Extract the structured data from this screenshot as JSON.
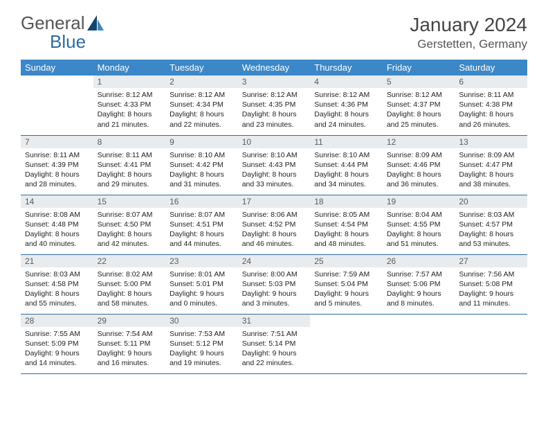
{
  "logo": {
    "word1": "General",
    "word2": "Blue"
  },
  "title": "January 2024",
  "location": "Gerstetten, Germany",
  "colors": {
    "header_bg": "#3c87c7",
    "header_text": "#ffffff",
    "daynum_bg": "#e8ecef",
    "daynum_text": "#5a5a5a",
    "rule": "#2d6ca2",
    "logo_gray": "#555555",
    "logo_blue": "#2d6ca2",
    "sail_dark": "#16456c",
    "sail_mid": "#3c87c7"
  },
  "weekdays": [
    "Sunday",
    "Monday",
    "Tuesday",
    "Wednesday",
    "Thursday",
    "Friday",
    "Saturday"
  ],
  "weeks": [
    [
      null,
      {
        "n": "1",
        "sr": "Sunrise: 8:12 AM",
        "ss": "Sunset: 4:33 PM",
        "d1": "Daylight: 8 hours",
        "d2": "and 21 minutes."
      },
      {
        "n": "2",
        "sr": "Sunrise: 8:12 AM",
        "ss": "Sunset: 4:34 PM",
        "d1": "Daylight: 8 hours",
        "d2": "and 22 minutes."
      },
      {
        "n": "3",
        "sr": "Sunrise: 8:12 AM",
        "ss": "Sunset: 4:35 PM",
        "d1": "Daylight: 8 hours",
        "d2": "and 23 minutes."
      },
      {
        "n": "4",
        "sr": "Sunrise: 8:12 AM",
        "ss": "Sunset: 4:36 PM",
        "d1": "Daylight: 8 hours",
        "d2": "and 24 minutes."
      },
      {
        "n": "5",
        "sr": "Sunrise: 8:12 AM",
        "ss": "Sunset: 4:37 PM",
        "d1": "Daylight: 8 hours",
        "d2": "and 25 minutes."
      },
      {
        "n": "6",
        "sr": "Sunrise: 8:11 AM",
        "ss": "Sunset: 4:38 PM",
        "d1": "Daylight: 8 hours",
        "d2": "and 26 minutes."
      }
    ],
    [
      {
        "n": "7",
        "sr": "Sunrise: 8:11 AM",
        "ss": "Sunset: 4:39 PM",
        "d1": "Daylight: 8 hours",
        "d2": "and 28 minutes."
      },
      {
        "n": "8",
        "sr": "Sunrise: 8:11 AM",
        "ss": "Sunset: 4:41 PM",
        "d1": "Daylight: 8 hours",
        "d2": "and 29 minutes."
      },
      {
        "n": "9",
        "sr": "Sunrise: 8:10 AM",
        "ss": "Sunset: 4:42 PM",
        "d1": "Daylight: 8 hours",
        "d2": "and 31 minutes."
      },
      {
        "n": "10",
        "sr": "Sunrise: 8:10 AM",
        "ss": "Sunset: 4:43 PM",
        "d1": "Daylight: 8 hours",
        "d2": "and 33 minutes."
      },
      {
        "n": "11",
        "sr": "Sunrise: 8:10 AM",
        "ss": "Sunset: 4:44 PM",
        "d1": "Daylight: 8 hours",
        "d2": "and 34 minutes."
      },
      {
        "n": "12",
        "sr": "Sunrise: 8:09 AM",
        "ss": "Sunset: 4:46 PM",
        "d1": "Daylight: 8 hours",
        "d2": "and 36 minutes."
      },
      {
        "n": "13",
        "sr": "Sunrise: 8:09 AM",
        "ss": "Sunset: 4:47 PM",
        "d1": "Daylight: 8 hours",
        "d2": "and 38 minutes."
      }
    ],
    [
      {
        "n": "14",
        "sr": "Sunrise: 8:08 AM",
        "ss": "Sunset: 4:48 PM",
        "d1": "Daylight: 8 hours",
        "d2": "and 40 minutes."
      },
      {
        "n": "15",
        "sr": "Sunrise: 8:07 AM",
        "ss": "Sunset: 4:50 PM",
        "d1": "Daylight: 8 hours",
        "d2": "and 42 minutes."
      },
      {
        "n": "16",
        "sr": "Sunrise: 8:07 AM",
        "ss": "Sunset: 4:51 PM",
        "d1": "Daylight: 8 hours",
        "d2": "and 44 minutes."
      },
      {
        "n": "17",
        "sr": "Sunrise: 8:06 AM",
        "ss": "Sunset: 4:52 PM",
        "d1": "Daylight: 8 hours",
        "d2": "and 46 minutes."
      },
      {
        "n": "18",
        "sr": "Sunrise: 8:05 AM",
        "ss": "Sunset: 4:54 PM",
        "d1": "Daylight: 8 hours",
        "d2": "and 48 minutes."
      },
      {
        "n": "19",
        "sr": "Sunrise: 8:04 AM",
        "ss": "Sunset: 4:55 PM",
        "d1": "Daylight: 8 hours",
        "d2": "and 51 minutes."
      },
      {
        "n": "20",
        "sr": "Sunrise: 8:03 AM",
        "ss": "Sunset: 4:57 PM",
        "d1": "Daylight: 8 hours",
        "d2": "and 53 minutes."
      }
    ],
    [
      {
        "n": "21",
        "sr": "Sunrise: 8:03 AM",
        "ss": "Sunset: 4:58 PM",
        "d1": "Daylight: 8 hours",
        "d2": "and 55 minutes."
      },
      {
        "n": "22",
        "sr": "Sunrise: 8:02 AM",
        "ss": "Sunset: 5:00 PM",
        "d1": "Daylight: 8 hours",
        "d2": "and 58 minutes."
      },
      {
        "n": "23",
        "sr": "Sunrise: 8:01 AM",
        "ss": "Sunset: 5:01 PM",
        "d1": "Daylight: 9 hours",
        "d2": "and 0 minutes."
      },
      {
        "n": "24",
        "sr": "Sunrise: 8:00 AM",
        "ss": "Sunset: 5:03 PM",
        "d1": "Daylight: 9 hours",
        "d2": "and 3 minutes."
      },
      {
        "n": "25",
        "sr": "Sunrise: 7:59 AM",
        "ss": "Sunset: 5:04 PM",
        "d1": "Daylight: 9 hours",
        "d2": "and 5 minutes."
      },
      {
        "n": "26",
        "sr": "Sunrise: 7:57 AM",
        "ss": "Sunset: 5:06 PM",
        "d1": "Daylight: 9 hours",
        "d2": "and 8 minutes."
      },
      {
        "n": "27",
        "sr": "Sunrise: 7:56 AM",
        "ss": "Sunset: 5:08 PM",
        "d1": "Daylight: 9 hours",
        "d2": "and 11 minutes."
      }
    ],
    [
      {
        "n": "28",
        "sr": "Sunrise: 7:55 AM",
        "ss": "Sunset: 5:09 PM",
        "d1": "Daylight: 9 hours",
        "d2": "and 14 minutes."
      },
      {
        "n": "29",
        "sr": "Sunrise: 7:54 AM",
        "ss": "Sunset: 5:11 PM",
        "d1": "Daylight: 9 hours",
        "d2": "and 16 minutes."
      },
      {
        "n": "30",
        "sr": "Sunrise: 7:53 AM",
        "ss": "Sunset: 5:12 PM",
        "d1": "Daylight: 9 hours",
        "d2": "and 19 minutes."
      },
      {
        "n": "31",
        "sr": "Sunrise: 7:51 AM",
        "ss": "Sunset: 5:14 PM",
        "d1": "Daylight: 9 hours",
        "d2": "and 22 minutes."
      },
      null,
      null,
      null
    ]
  ]
}
